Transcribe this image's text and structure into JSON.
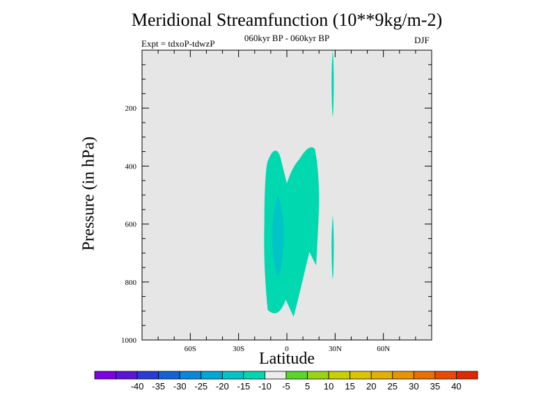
{
  "chart_data": {
    "type": "heatmap",
    "title": "Meridional Streamfunction (10**9kg/m-2)",
    "subtitle": "060kyr BP - 060kyr BP",
    "experiment_label": "Expt = tdxoP-tdwzP",
    "season_label": "DJF",
    "xlabel": "Latitude",
    "ylabel": "Pressure (in hPa)",
    "x_ticks": [
      {
        "value": -60,
        "label": "60S"
      },
      {
        "value": -30,
        "label": "30S"
      },
      {
        "value": 0,
        "label": "0"
      },
      {
        "value": 30,
        "label": "30N"
      },
      {
        "value": 60,
        "label": "60N"
      }
    ],
    "y_ticks": [
      {
        "value": 200,
        "label": "200"
      },
      {
        "value": 400,
        "label": "400"
      },
      {
        "value": 600,
        "label": "600"
      },
      {
        "value": 800,
        "label": "800"
      },
      {
        "value": 1000,
        "label": "1000"
      }
    ],
    "xlim": [
      -90,
      90
    ],
    "ylim": [
      1000,
      0
    ],
    "background_color": "#e6e6e6",
    "colorbar": {
      "colors": [
        "#7f00e0",
        "#5a14d8",
        "#2a3ad6",
        "#1460d8",
        "#0a86dc",
        "#00a8d8",
        "#00c4c8",
        "#00d8b0",
        "#ececec",
        "#5ad62a",
        "#98d414",
        "#c8d000",
        "#dcc400",
        "#e4b000",
        "#e89400",
        "#e87000",
        "#e84a00",
        "#e02800"
      ],
      "labels": [
        "-40",
        "-35",
        "-30",
        "-25",
        "-20",
        "-15",
        "-10",
        "-5",
        "5",
        "10",
        "15",
        "20",
        "25",
        "30",
        "35",
        "40"
      ]
    },
    "contour_regions": [
      {
        "level": "-10 to -5",
        "color": "#00d8b0",
        "lat_range": [
          -14,
          21
        ],
        "pressure_range": [
          330,
          920
        ]
      },
      {
        "level": "-10 to -5",
        "color": "#00d8b0",
        "lat_range": [
          28,
          29
        ],
        "pressure_range": [
          0,
          260
        ]
      },
      {
        "level": "-10 to -5",
        "color": "#00d8b0",
        "lat_range": [
          28,
          29
        ],
        "pressure_range": [
          570,
          820
        ]
      },
      {
        "level": "-15 to -10",
        "color": "#00c4c8",
        "lat_range": [
          -8,
          -3
        ],
        "pressure_range": [
          500,
          820
        ]
      }
    ]
  }
}
